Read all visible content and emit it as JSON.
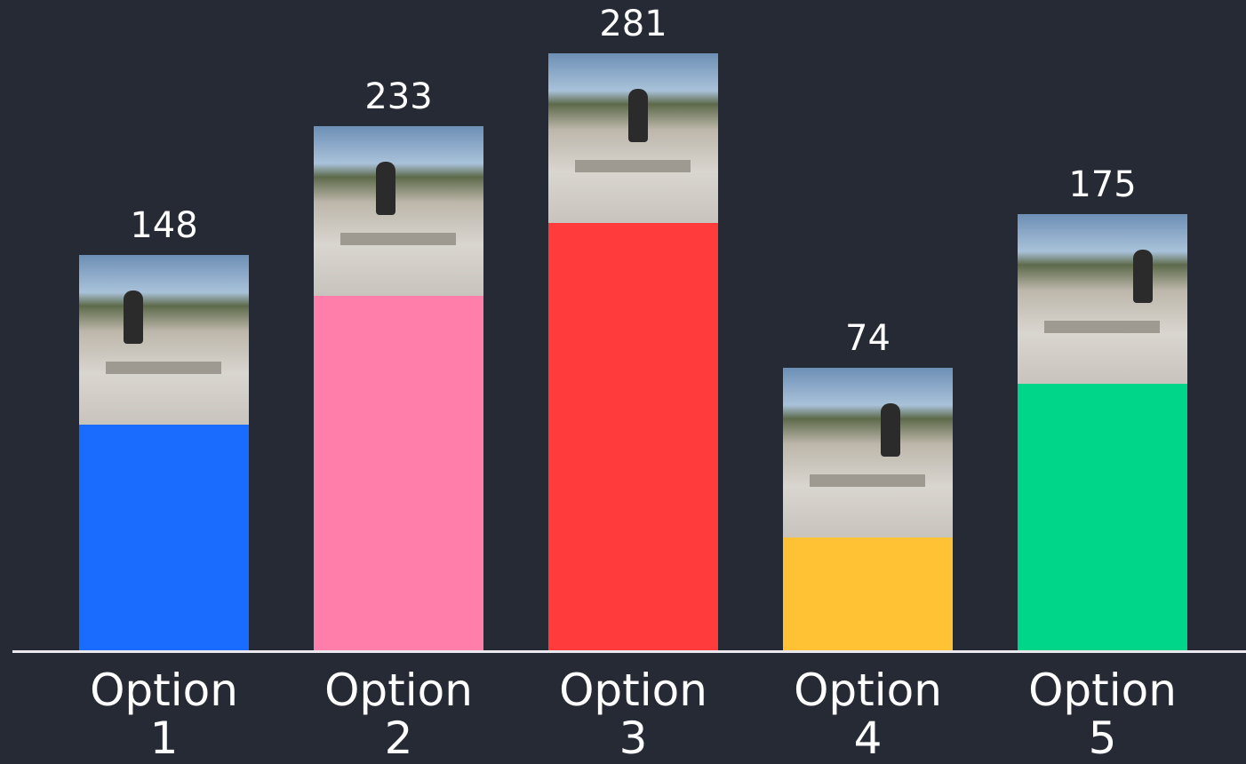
{
  "chart_data": {
    "type": "bar",
    "categories": [
      "Option 1",
      "Option 2",
      "Option 3",
      "Option 4",
      "Option 5"
    ],
    "values": [
      148,
      233,
      281,
      74,
      175
    ],
    "colors": [
      "#1a6bff",
      "#ff7eaa",
      "#ff3b3b",
      "#ffc234",
      "#00d68a"
    ]
  }
}
